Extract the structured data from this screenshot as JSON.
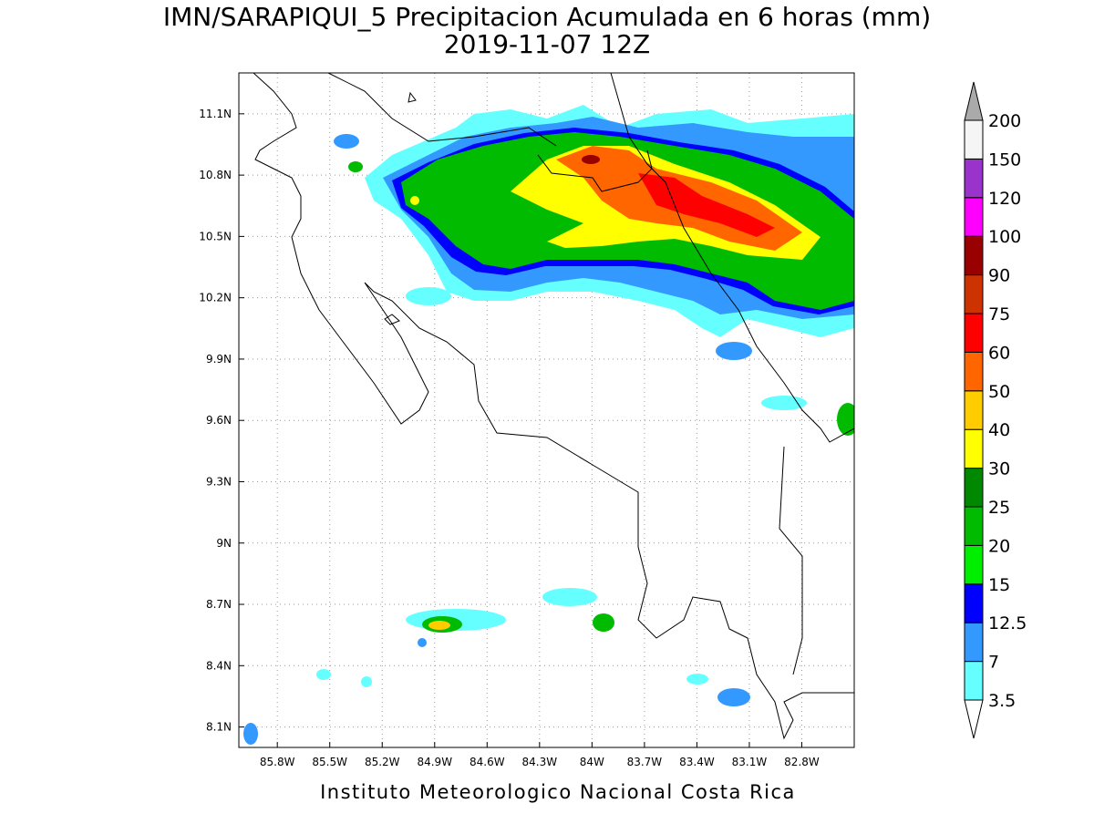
{
  "title": "IMN/SARAPIQUI_5 Precipitacion Acumulada en 6 horas (mm)",
  "subtitle": "2019-11-07 12Z",
  "map": {
    "lonlim": [
      -86.02,
      -82.5
    ],
    "latlim": [
      8.0,
      11.3
    ],
    "lon_ticks": [
      {
        "value": -85.8,
        "label": "85.8W"
      },
      {
        "value": -85.5,
        "label": "85.5W"
      },
      {
        "value": -85.2,
        "label": "85.2W"
      },
      {
        "value": -84.9,
        "label": "84.9W"
      },
      {
        "value": -84.6,
        "label": "84.6W"
      },
      {
        "value": -84.3,
        "label": "84.3W"
      },
      {
        "value": -84.0,
        "label": "84W"
      },
      {
        "value": -83.7,
        "label": "83.7W"
      },
      {
        "value": -83.4,
        "label": "83.4W"
      },
      {
        "value": -83.1,
        "label": "83.1W"
      },
      {
        "value": -82.8,
        "label": "82.8W"
      }
    ],
    "lat_ticks": [
      {
        "value": 11.1,
        "label": "11.1N"
      },
      {
        "value": 10.8,
        "label": "10.8N"
      },
      {
        "value": 10.5,
        "label": "10.5N"
      },
      {
        "value": 10.2,
        "label": "10.2N"
      },
      {
        "value": 9.9,
        "label": "9.9N"
      },
      {
        "value": 9.6,
        "label": "9.6N"
      },
      {
        "value": 9.3,
        "label": "9.3N"
      },
      {
        "value": 9.0,
        "label": "9N"
      },
      {
        "value": 8.7,
        "label": "8.7N"
      },
      {
        "value": 8.4,
        "label": "8.4N"
      },
      {
        "value": 8.1,
        "label": "8.1N"
      }
    ]
  },
  "colorbar": {
    "levels": [
      3.5,
      7,
      12.5,
      15,
      20,
      25,
      30,
      40,
      50,
      60,
      75,
      90,
      100,
      120,
      150,
      200
    ],
    "colors": [
      "#66ffff",
      "#3399ff",
      "#0000ff",
      "#00ee00",
      "#00bb00",
      "#008800",
      "#ffff00",
      "#ffcc00",
      "#ff6600",
      "#ff0000",
      "#cc3300",
      "#990000",
      "#ff00ff",
      "#9933cc",
      "#f5f5f5"
    ],
    "under_color": "#ffffff",
    "over_color": "#aaaaaa"
  },
  "footer": "Instituto Meteorologico Nacional Costa Rica"
}
